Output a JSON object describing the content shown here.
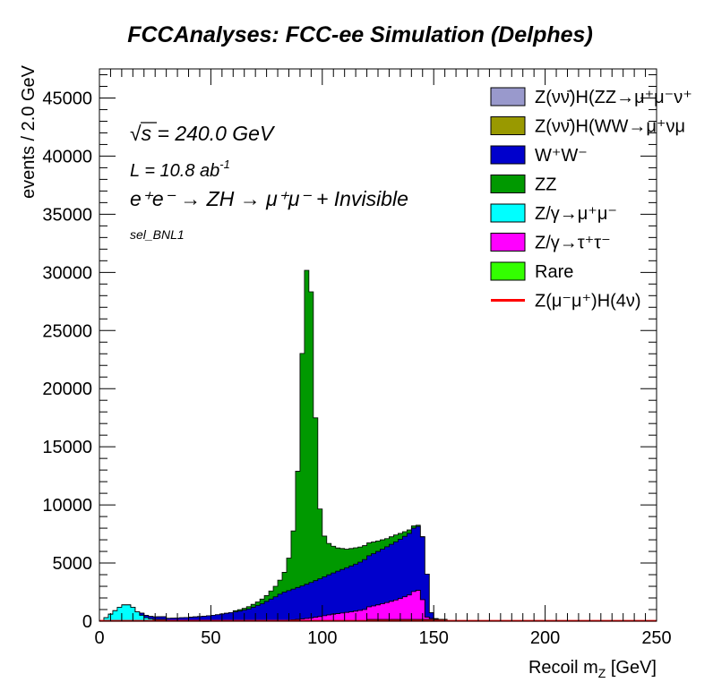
{
  "chart_data": {
    "type": "area",
    "stacked": true,
    "title": "FCCAnalyses: FCC-ee Simulation (Delphes)",
    "xlabel": "Recoil m_Z [GeV]",
    "ylabel": "events / 2.0 GeV",
    "xlim": [
      0,
      250
    ],
    "ylim": [
      0,
      47500
    ],
    "xticks": [
      "0",
      "50",
      "100",
      "150",
      "200",
      "250"
    ],
    "yticks": [
      "0",
      "5000",
      "10000",
      "15000",
      "20000",
      "25000",
      "30000",
      "35000",
      "40000",
      "45000"
    ],
    "bin_width": 2.0,
    "legend_position": "top-right",
    "annotations": {
      "energy": "= 240.0 GeV",
      "sqrt_symbol": "√s",
      "lumi": "L = 10.8 ab",
      "lumi_exp": "-1",
      "process": "e⁺e⁻ → ZH → μ⁺μ⁻ + Invisible",
      "selection": "sel_BNL1"
    },
    "legend": [
      {
        "label": "Z(νν̄)H(ZZ→μ⁺μ⁻ν⁺",
        "color": "#9999cc",
        "kind": "fill"
      },
      {
        "label": "Z(νν̄)H(WW→μ⁺νμ",
        "color": "#999900",
        "kind": "fill"
      },
      {
        "label": "W⁺W⁻",
        "color": "#0000cc",
        "kind": "fill"
      },
      {
        "label": "ZZ",
        "color": "#009900",
        "kind": "fill"
      },
      {
        "label": "Z/γ→μ⁺μ⁻",
        "color": "#00ffff",
        "kind": "fill"
      },
      {
        "label": "Z/γ→τ⁺τ⁻",
        "color": "#ff00ff",
        "kind": "fill"
      },
      {
        "label": "Rare",
        "color": "#33ff00",
        "kind": "fill"
      },
      {
        "label": "Z(μ⁻μ⁺)H(4ν)",
        "color": "#ff0000",
        "kind": "line"
      }
    ],
    "stack_order_bottom_to_top": [
      "Z(νν̄)H(WW→μ⁺νμ",
      "Z/γ→τ⁺τ⁻",
      "Z/γ→μ⁺μ⁻",
      "W⁺W⁻",
      "ZZ"
    ],
    "series": [
      {
        "name": "Z(νν̄)H(WW→μ⁺νμ",
        "x_range": [
          120,
          156
        ],
        "values": [
          150,
          150,
          150,
          150,
          150,
          150,
          150,
          150,
          150,
          150,
          150,
          150,
          150,
          150,
          150,
          150,
          150,
          150
        ]
      },
      {
        "name": "Z/γ→τ⁺τ⁻",
        "x_range": [
          80,
          156
        ],
        "values": [
          30,
          50,
          80,
          110,
          150,
          180,
          230,
          280,
          340,
          400,
          470,
          540,
          600,
          650,
          700,
          750,
          800,
          860,
          930,
          1000,
          1080,
          1160,
          1250,
          1350,
          1450,
          1560,
          1670,
          1800,
          1950,
          2100,
          2400,
          2500,
          1700,
          200,
          80,
          20,
          0,
          0
        ]
      },
      {
        "name": "Z/γ→μ⁺μ⁻",
        "x_range": [
          2,
          30
        ],
        "values": [
          300,
          600,
          900,
          1200,
          1400,
          1400,
          1200,
          800,
          500,
          300,
          200,
          150,
          150,
          150
        ]
      },
      {
        "name": "W⁺W⁻",
        "x_range": [
          18,
          156
        ],
        "values": [
          190,
          200,
          210,
          220,
          230,
          240,
          250,
          260,
          280,
          300,
          320,
          340,
          370,
          400,
          430,
          470,
          510,
          560,
          620,
          680,
          740,
          800,
          870,
          950,
          1050,
          1200,
          1350,
          1500,
          1700,
          1900,
          2100,
          2300,
          2450,
          2550,
          2650,
          2750,
          2850,
          2950,
          3050,
          3150,
          3250,
          3350,
          3450,
          3550,
          3650,
          3750,
          3850,
          3950,
          4050,
          4150,
          4300,
          4400,
          4500,
          4600,
          4700,
          4800,
          4900,
          5000,
          5100,
          5200,
          5300,
          5450,
          5500,
          5400,
          3700,
          500,
          50,
          0,
          0
        ]
      },
      {
        "name": "ZZ",
        "x_range": [
          60,
          156
        ],
        "values": [
          100,
          120,
          150,
          200,
          250,
          300,
          400,
          500,
          700,
          900,
          1200,
          1700,
          2800,
          5000,
          10000,
          20000,
          27000,
          25000,
          14000,
          6000,
          3500,
          2700,
          2300,
          2000,
          1800,
          1600,
          1500,
          1400,
          1300,
          1200,
          1100,
          1000,
          900,
          800,
          700,
          650,
          600,
          500,
          400,
          300,
          200,
          100,
          20,
          0,
          0,
          0,
          0,
          0
        ]
      }
    ],
    "signal": {
      "name": "Z(μ⁻μ⁺)H(4ν)",
      "level": 30,
      "x_range": [
        0,
        250
      ]
    }
  }
}
